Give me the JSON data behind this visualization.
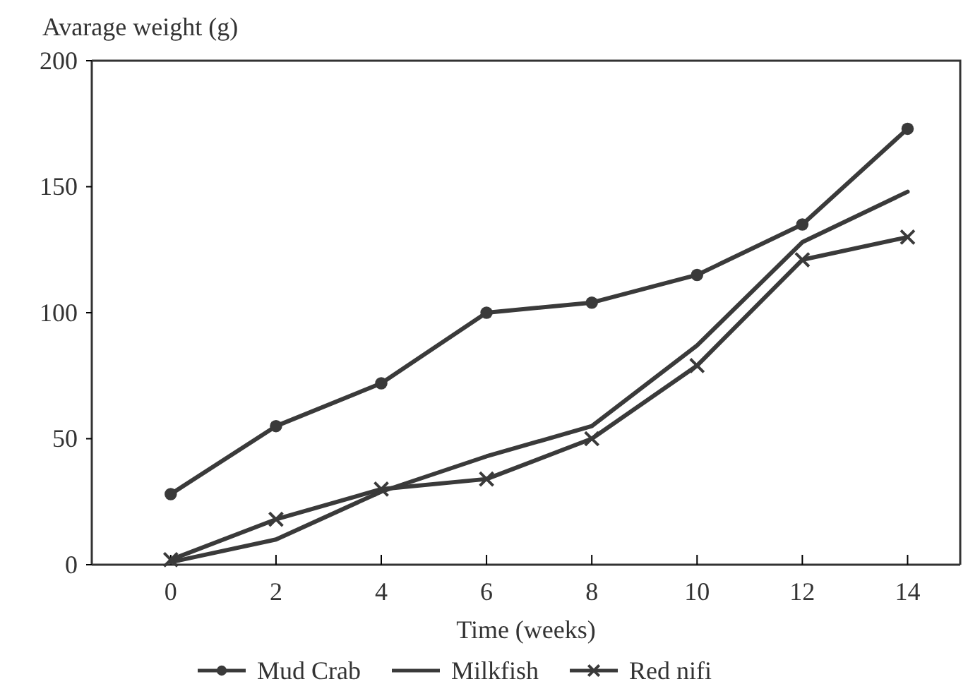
{
  "chart_data": {
    "type": "line",
    "ylabel": "Avarage weight (g)",
    "xlabel": "Time (weeks)",
    "x": [
      0,
      2,
      4,
      6,
      8,
      10,
      12,
      14
    ],
    "xlim": [
      -1.5,
      15
    ],
    "xticks": [
      0,
      2,
      4,
      6,
      8,
      10,
      12,
      14
    ],
    "ylim": [
      0,
      200
    ],
    "yticks": [
      0,
      50,
      100,
      150,
      200
    ],
    "grid": false,
    "legend": "bottom",
    "line_style": "solid",
    "series": [
      {
        "name": "Mud Crab",
        "color": "#3a3a3a",
        "marker": "circle",
        "values": [
          28,
          55,
          72,
          100,
          104,
          115,
          135,
          173
        ]
      },
      {
        "name": "Milkfish",
        "color": "#3a3a3a",
        "marker": "none",
        "values": [
          1,
          10,
          29,
          43,
          55,
          87,
          128,
          148
        ]
      },
      {
        "name": "Red nifi",
        "color": "#3a3a3a",
        "marker": "cross",
        "values": [
          2,
          18,
          30,
          34,
          50,
          79,
          121,
          130
        ]
      }
    ]
  }
}
